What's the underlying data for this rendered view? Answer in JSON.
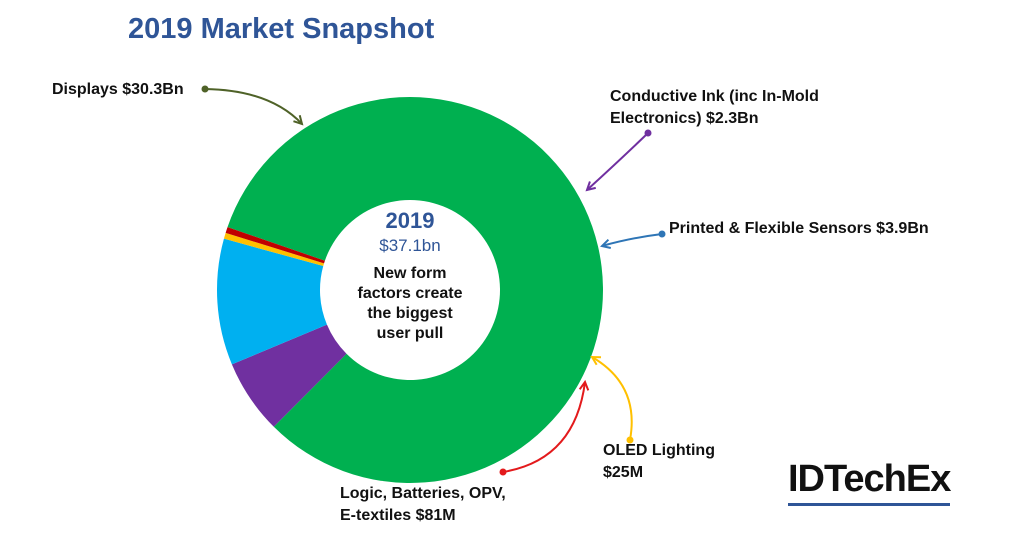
{
  "title": "2019 Market Snapshot",
  "center": {
    "year": "2019",
    "total": "$37.1bn",
    "caption_lines": [
      "New form",
      "factors create",
      "the biggest",
      "user pull"
    ]
  },
  "labels": {
    "displays": [
      "Displays $30.3Bn"
    ],
    "ink": [
      "Conductive Ink (inc In-Mold",
      "Electronics) $2.3Bn"
    ],
    "sensors": [
      "Printed & Flexible Sensors $3.9Bn"
    ],
    "oled": [
      "OLED Lighting",
      "$25M"
    ],
    "logic": [
      "Logic, Batteries, OPV,",
      "E-textiles $81M"
    ]
  },
  "brand": "IDTechEx",
  "chart_data": {
    "type": "pie",
    "title": "2019 Market Snapshot",
    "units": "USD billions",
    "total": 37.1,
    "slices": [
      {
        "label": "Displays",
        "value": 30.3,
        "color": "#00b050"
      },
      {
        "label": "Conductive Ink (inc In-Mold Electronics)",
        "value": 2.3,
        "color": "#7030a0"
      },
      {
        "label": "Printed & Flexible Sensors",
        "value": 3.9,
        "color": "#00b0f0"
      },
      {
        "label": "OLED Lighting",
        "value": 0.025,
        "color": "#ffc000"
      },
      {
        "label": "Logic, Batteries, OPV, E-textiles",
        "value": 0.081,
        "color": "#c00000"
      }
    ],
    "connector_colors": {
      "displays": "#4f6228",
      "ink": "#7030a0",
      "sensors": "#2e75b6",
      "oled": "#ffc000",
      "logic": "#e31a1c"
    }
  }
}
